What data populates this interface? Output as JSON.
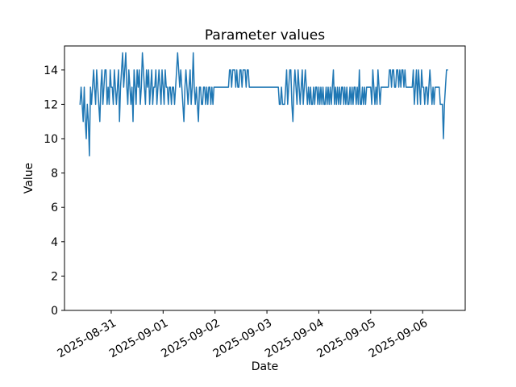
{
  "figure": {
    "background": "#ffffff"
  },
  "chart_data": {
    "type": "line",
    "title": "Parameter values",
    "xlabel": "Date",
    "ylabel": "Value",
    "line_color": "#1f77b4",
    "axis_color": "#000000",
    "grid": false,
    "legend": "none",
    "x_tick_labels": [
      "2025-08-31",
      "2025-09-01",
      "2025-09-02",
      "2025-09-03",
      "2025-09-04",
      "2025-09-05",
      "2025-09-06"
    ],
    "x_tick_positions_days": [
      0,
      1,
      2,
      3,
      4,
      5,
      6
    ],
    "x_tick_rotation_deg": 30,
    "y_ticks": [
      0,
      2,
      4,
      6,
      8,
      10,
      12,
      14
    ],
    "xlim_days": [
      -0.9,
      6.82
    ],
    "ylim": [
      0,
      15.4
    ],
    "series": [
      {
        "name": "parameter",
        "t0_days": -0.6,
        "dt_days": 0.02,
        "values": [
          12,
          13,
          12,
          11,
          13,
          11,
          10,
          12,
          11,
          9,
          13,
          12,
          13,
          14,
          13,
          12,
          14,
          13,
          12,
          11,
          13,
          14,
          12,
          13,
          14,
          14,
          12,
          13,
          12,
          14,
          13,
          13,
          12,
          14,
          13,
          12,
          13,
          14,
          11,
          13,
          14,
          15,
          13,
          14,
          15,
          13,
          12,
          14,
          13,
          12,
          13,
          11,
          14,
          13,
          12,
          14,
          13,
          14,
          12,
          13,
          15,
          14,
          13,
          12,
          14,
          13,
          14,
          12,
          13,
          14,
          12,
          13,
          13,
          14,
          12,
          13,
          14,
          13,
          12,
          14,
          13,
          12,
          14,
          13,
          13,
          12,
          13,
          13,
          12,
          13,
          13,
          12,
          13,
          14,
          15,
          14,
          13,
          14,
          13,
          12,
          11,
          13,
          14,
          13,
          12,
          13,
          14,
          12,
          13,
          15,
          13,
          12,
          13,
          12,
          11,
          13,
          13,
          12,
          12,
          13,
          13,
          12,
          13,
          12,
          13,
          13,
          12,
          13,
          12,
          13,
          13,
          13,
          13,
          13,
          13,
          13,
          13,
          13,
          13,
          13,
          13,
          13,
          13,
          13,
          14,
          14,
          13,
          14,
          14,
          14,
          13,
          14,
          13,
          13,
          14,
          14,
          13,
          14,
          14,
          14,
          13,
          14,
          14,
          13,
          13,
          13,
          13,
          13,
          13,
          13,
          13,
          13,
          13,
          13,
          13,
          13,
          13,
          13,
          13,
          13,
          13,
          13,
          13,
          13,
          13,
          13,
          13,
          13,
          13,
          13,
          13,
          13,
          12,
          12,
          13,
          12,
          12,
          12,
          13,
          14,
          12,
          13,
          14,
          14,
          12,
          11,
          13,
          14,
          13,
          12,
          14,
          13,
          12,
          13,
          14,
          12,
          13,
          14,
          13,
          12,
          13,
          12,
          13,
          12,
          12,
          13,
          12,
          13,
          13,
          12,
          13,
          12,
          13,
          12,
          13,
          12,
          12,
          13,
          12,
          13,
          12,
          13,
          12,
          13,
          14,
          12,
          13,
          12,
          13,
          12,
          13,
          12,
          13,
          13,
          12,
          13,
          12,
          13,
          12,
          12,
          13,
          12,
          13,
          12,
          13,
          13,
          12,
          13,
          12,
          14,
          12,
          12,
          13,
          12,
          13,
          12,
          13,
          13,
          13,
          13,
          13,
          12,
          14,
          13,
          12,
          13,
          12,
          14,
          13,
          12,
          13,
          13,
          13,
          13,
          13,
          13,
          13,
          13,
          14,
          14,
          13,
          14,
          14,
          13,
          13,
          14,
          14,
          13,
          14,
          13,
          14,
          14,
          13,
          14,
          13,
          13,
          13,
          13,
          13,
          13,
          13,
          14,
          12,
          13,
          14,
          12,
          14,
          13,
          12,
          14,
          13,
          13,
          12,
          13,
          13,
          12,
          13,
          14,
          13,
          12,
          13,
          12,
          13,
          13,
          13,
          13,
          13,
          12,
          12,
          12,
          10,
          12,
          13,
          14,
          14
        ]
      }
    ]
  }
}
